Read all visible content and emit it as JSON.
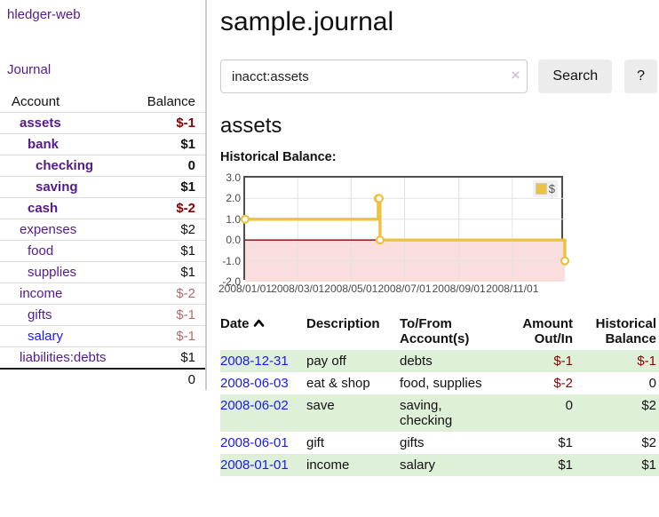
{
  "app": {
    "brand": "hledger-web",
    "nav_journal": "Journal"
  },
  "sidebar": {
    "accounts_table": {
      "col_account": "Account",
      "col_balance": "Balance",
      "rows": [
        {
          "name": "assets",
          "indent": 0,
          "bold": true,
          "balance": "$-1",
          "balance_style": "neg-strong"
        },
        {
          "name": "bank",
          "indent": 1,
          "bold": true,
          "balance": "$1",
          "balance_style": "pos-strong"
        },
        {
          "name": "checking",
          "indent": 2,
          "bold": true,
          "balance": "0",
          "balance_style": "pos-strong"
        },
        {
          "name": "saving",
          "indent": 2,
          "bold": true,
          "balance": "$1",
          "balance_style": "pos-strong"
        },
        {
          "name": "cash",
          "indent": 1,
          "bold": true,
          "balance": "$-2",
          "balance_style": "neg-strong"
        },
        {
          "name": "expenses",
          "indent": 0,
          "bold": false,
          "balance": "$2",
          "balance_style": "pos"
        },
        {
          "name": "food",
          "indent": 1,
          "bold": false,
          "balance": "$1",
          "balance_style": "pos"
        },
        {
          "name": "supplies",
          "indent": 1,
          "bold": false,
          "balance": "$1",
          "balance_style": "pos"
        },
        {
          "name": "income",
          "indent": 0,
          "bold": false,
          "balance": "$-2",
          "balance_style": "neg"
        },
        {
          "name": "gifts",
          "indent": 1,
          "bold": false,
          "balance": "$-1",
          "balance_style": "neg"
        },
        {
          "name": "salary",
          "indent": 1,
          "bold": false,
          "link_style": "blue",
          "balance": "$-1",
          "balance_style": "neg"
        },
        {
          "name": "liabilities:debts",
          "indent": 0,
          "bold": false,
          "balance": "$1",
          "balance_style": "pos"
        }
      ],
      "total": "0"
    }
  },
  "header": {
    "title": "sample.journal"
  },
  "search": {
    "value": "inacct:assets",
    "clear_icon": "×",
    "search_label": "Search",
    "help_label": "?"
  },
  "account_page": {
    "heading": "assets",
    "chart_label": "Historical Balance:"
  },
  "chart_data": {
    "type": "line",
    "title": "Historical Balance of assets",
    "step": true,
    "legend": [
      {
        "label": "$",
        "color": "#edc240"
      }
    ],
    "legend_position": "top-right",
    "grid": true,
    "xlim": [
      0,
      365
    ],
    "ylim": [
      -2,
      3
    ],
    "y_ticks": [
      3.0,
      2.0,
      1.0,
      0.0,
      -1.0,
      -2.0
    ],
    "y_tick_labels": [
      "3.0",
      "2.0",
      "1.0",
      "0.0",
      "-1.0",
      "-2.0"
    ],
    "x_ticks": [
      {
        "label": "2008/01/01",
        "x_day": 0
      },
      {
        "label": "2008/03/01",
        "x_day": 60
      },
      {
        "label": "2008/05/01",
        "x_day": 121
      },
      {
        "label": "2008/07/01",
        "x_day": 182
      },
      {
        "label": "2008/09/01",
        "x_day": 244
      },
      {
        "label": "2008/11/01",
        "x_day": 305
      }
    ],
    "series": [
      {
        "name": "$",
        "points": [
          {
            "date": "2008-01-01",
            "x_day": 0,
            "y": 1
          },
          {
            "date": "2008-06-01",
            "x_day": 152,
            "y": 2
          },
          {
            "date": "2008-06-02",
            "x_day": 153,
            "y": 2
          },
          {
            "date": "2008-06-03",
            "x_day": 154,
            "y": 0
          },
          {
            "date": "2008-12-31",
            "x_day": 365,
            "y": -1
          }
        ]
      }
    ],
    "colors": {
      "series": "#edc240",
      "marker_fill": "#ffffff",
      "grid": "#e2e2e2",
      "zero_line": "#8b0000",
      "below_zero_fill": "#fadddd",
      "border": "#4d4d4d"
    }
  },
  "register": {
    "columns": {
      "date": "Date",
      "description": "Description",
      "tofrom": "To/From Account(s)",
      "amount": "Amount Out/In",
      "balance": "Historical Balance"
    },
    "rows": [
      {
        "date": "2008-12-31",
        "description": "pay off",
        "accounts": "debts",
        "amount": "$-1",
        "amount_neg": true,
        "balance": "$-1",
        "balance_neg": true,
        "green": true
      },
      {
        "date": "2008-06-03",
        "description": "eat & shop",
        "accounts": "food, supplies",
        "amount": "$-2",
        "amount_neg": true,
        "balance": "0",
        "balance_neg": false,
        "green": false
      },
      {
        "date": "2008-06-02",
        "description": "save",
        "accounts": "saving, checking",
        "amount": "0",
        "amount_neg": false,
        "balance": "$2",
        "balance_neg": false,
        "green": true
      },
      {
        "date": "2008-06-01",
        "description": "gift",
        "accounts": "gifts",
        "amount": "$1",
        "amount_neg": false,
        "balance": "$2",
        "balance_neg": false,
        "green": false
      },
      {
        "date": "2008-01-01",
        "description": "income",
        "accounts": "salary",
        "amount": "$1",
        "amount_neg": false,
        "balance": "$1",
        "balance_neg": false,
        "green": true
      }
    ]
  }
}
